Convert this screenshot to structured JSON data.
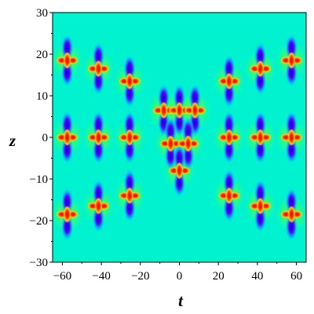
{
  "chart_data": {
    "type": "heatmap",
    "title": "",
    "xlabel": "t",
    "ylabel": "z",
    "xlim": [
      -65,
      65
    ],
    "ylim": [
      -30,
      30
    ],
    "x_ticks": [
      -60,
      -40,
      -20,
      0,
      20,
      40,
      60
    ],
    "x_tick_labels": [
      "−60",
      "−40",
      "−20",
      "0",
      "20",
      "40",
      "60"
    ],
    "y_ticks": [
      -30,
      -20,
      -10,
      0,
      10,
      20,
      30
    ],
    "y_tick_labels": [
      "−30",
      "−20",
      "−10",
      "0",
      "10",
      "20",
      "30"
    ],
    "grid": false,
    "colormap": [
      "#0000d8",
      "#7a00ff",
      "#00b4ff",
      "#00ffe6",
      "#00ff80",
      "#8cff00",
      "#ffd200",
      "#ff5a00",
      "#ff0020"
    ],
    "background_value": 0.5,
    "peaks": [
      {
        "t": -57.5,
        "z": 18.5
      },
      {
        "t": -41.5,
        "z": 16.5
      },
      {
        "t": -25.5,
        "z": 13.5
      },
      {
        "t": 25.5,
        "z": 13.5
      },
      {
        "t": 41.5,
        "z": 16.5
      },
      {
        "t": 57.5,
        "z": 18.5
      },
      {
        "t": -57.5,
        "z": 0
      },
      {
        "t": -41.5,
        "z": 0
      },
      {
        "t": -25.5,
        "z": 0
      },
      {
        "t": 25.5,
        "z": 0
      },
      {
        "t": 41.5,
        "z": 0
      },
      {
        "t": 57.5,
        "z": 0
      },
      {
        "t": -57.5,
        "z": -18.5
      },
      {
        "t": -41.5,
        "z": -16.5
      },
      {
        "t": -25.5,
        "z": -14
      },
      {
        "t": 25.5,
        "z": -14
      },
      {
        "t": 41.5,
        "z": -16.5
      },
      {
        "t": 57.5,
        "z": -18.5
      },
      {
        "t": -8,
        "z": 6.5
      },
      {
        "t": 0,
        "z": 6.5
      },
      {
        "t": 8,
        "z": 6.5
      },
      {
        "t": -4.5,
        "z": -1.5
      },
      {
        "t": 4.5,
        "z": -1.5
      },
      {
        "t": 0,
        "z": -8
      }
    ]
  }
}
